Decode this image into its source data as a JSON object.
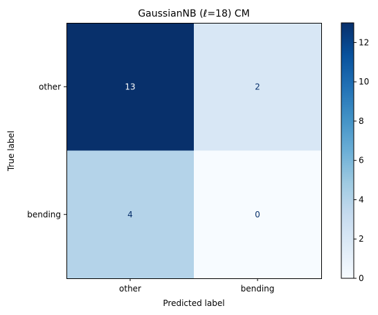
{
  "chart_data": {
    "type": "heatmap",
    "title": "GaussianNB (ℓ=18) CM",
    "xlabel": "Predicted label",
    "ylabel": "True label",
    "x_categories": [
      "other",
      "bending"
    ],
    "y_categories": [
      "other",
      "bending"
    ],
    "values": [
      [
        13,
        2
      ],
      [
        4,
        0
      ]
    ],
    "colorbar": {
      "colormap": "Blues",
      "range": [
        0,
        13
      ],
      "ticks": [
        0,
        2,
        4,
        6,
        8,
        10,
        12
      ]
    }
  }
}
